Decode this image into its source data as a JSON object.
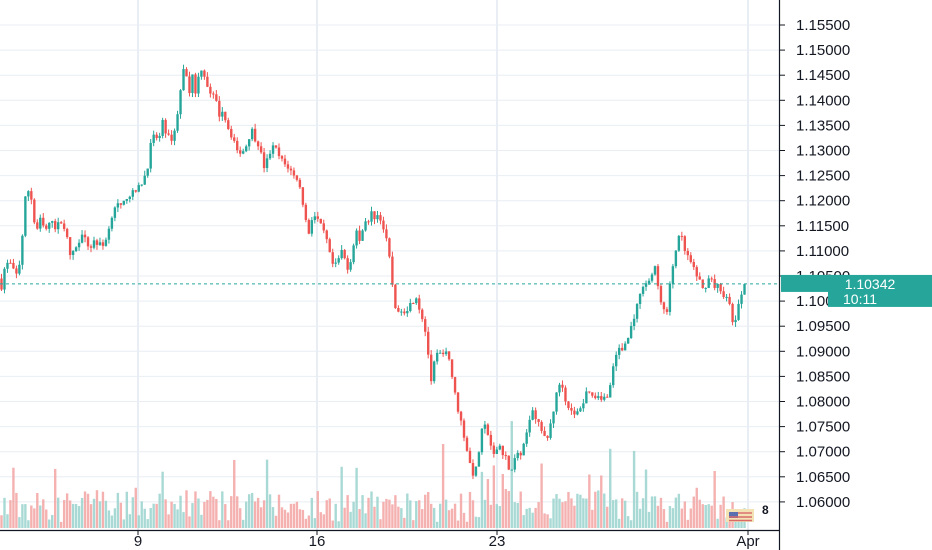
{
  "chart_data": {
    "type": "candlestick",
    "y_axis": {
      "ticks": [
        "1.15500",
        "1.15000",
        "1.14500",
        "1.14000",
        "1.13500",
        "1.13000",
        "1.12500",
        "1.12000",
        "1.11500",
        "1.11000",
        "1.10500",
        "1.10000",
        "1.09500",
        "1.09000",
        "1.08500",
        "1.08000",
        "1.07500",
        "1.07000",
        "1.06500",
        "1.06000"
      ],
      "ylim": [
        1.0555,
        1.159
      ],
      "position": "right"
    },
    "x_axis": {
      "ticks": [
        "9",
        "16",
        "23",
        "Apr"
      ]
    },
    "grid": true,
    "current_price": {
      "label": "1.10342",
      "value": 1.10342,
      "color": "#26a69a"
    },
    "countdown": {
      "label": "10:11"
    },
    "volume_badge": "8",
    "colors": {
      "up": "#26a69a",
      "down": "#ef5350",
      "grid": "#e8eef3",
      "axis": "#131722"
    },
    "path": [
      [
        0,
        1.1045
      ],
      [
        2,
        1.1025
      ],
      [
        4,
        1.109
      ],
      [
        5,
        1.107
      ],
      [
        7,
        1.1075
      ],
      [
        9,
        1.1045
      ],
      [
        12,
        1.1085
      ],
      [
        14,
        1.12
      ],
      [
        16,
        1.122
      ],
      [
        18,
        1.12
      ],
      [
        20,
        1.113
      ],
      [
        22,
        1.1165
      ],
      [
        25,
        1.114
      ],
      [
        27,
        1.115
      ],
      [
        29,
        1.1165
      ],
      [
        31,
        1.114
      ],
      [
        33,
        1.1165
      ],
      [
        35,
        1.115
      ],
      [
        37,
        1.112
      ],
      [
        39,
        1.108
      ],
      [
        41,
        1.111
      ],
      [
        43,
        1.111
      ],
      [
        45,
        1.114
      ],
      [
        47,
        1.1115
      ],
      [
        49,
        1.1105
      ],
      [
        51,
        1.112
      ],
      [
        53,
        1.1115
      ],
      [
        56,
        1.111
      ],
      [
        59,
        1.114
      ],
      [
        61,
        1.1175
      ],
      [
        63,
        1.1195
      ],
      [
        66,
        1.1185
      ],
      [
        69,
        1.121
      ],
      [
        72,
        1.1215
      ],
      [
        74,
        1.122
      ],
      [
        76,
        1.123
      ],
      [
        78,
        1.1245
      ],
      [
        80,
        1.127
      ],
      [
        82,
        1.132
      ],
      [
        84,
        1.133
      ],
      [
        86,
        1.132
      ],
      [
        88,
        1.1355
      ],
      [
        90,
        1.1335
      ],
      [
        92,
        1.132
      ],
      [
        94,
        1.133
      ],
      [
        96,
        1.1375
      ],
      [
        98,
        1.143
      ],
      [
        100,
        1.148
      ],
      [
        102,
        1.141
      ],
      [
        104,
        1.145
      ],
      [
        106,
        1.141
      ],
      [
        108,
        1.147
      ],
      [
        110,
        1.1455
      ],
      [
        112,
        1.143
      ],
      [
        114,
        1.1405
      ],
      [
        116,
        1.141
      ],
      [
        118,
        1.137
      ],
      [
        120,
        1.138
      ],
      [
        122,
        1.136
      ],
      [
        124,
        1.1335
      ],
      [
        126,
        1.1325
      ],
      [
        128,
        1.1295
      ],
      [
        130,
        1.13
      ],
      [
        132,
        1.13
      ],
      [
        134,
        1.1325
      ],
      [
        136,
        1.134
      ],
      [
        138,
        1.132
      ],
      [
        140,
        1.131
      ],
      [
        142,
        1.1265
      ],
      [
        144,
        1.128
      ],
      [
        146,
        1.13
      ],
      [
        148,
        1.131
      ],
      [
        150,
        1.129
      ],
      [
        152,
        1.128
      ],
      [
        154,
        1.127
      ],
      [
        156,
        1.1265
      ],
      [
        158,
        1.125
      ],
      [
        160,
        1.1245
      ],
      [
        162,
        1.122
      ],
      [
        164,
        1.118
      ],
      [
        166,
        1.113
      ],
      [
        168,
        1.1165
      ],
      [
        170,
        1.117
      ],
      [
        172,
        1.1155
      ],
      [
        174,
        1.114
      ],
      [
        176,
        1.112
      ],
      [
        178,
        1.1085
      ],
      [
        180,
        1.1065
      ],
      [
        182,
        1.108
      ],
      [
        184,
        1.11
      ],
      [
        186,
        1.108
      ],
      [
        188,
        1.106
      ],
      [
        190,
        1.111
      ],
      [
        192,
        1.114
      ],
      [
        194,
        1.111
      ],
      [
        196,
        1.117
      ],
      [
        198,
        1.115
      ],
      [
        200,
        1.1175
      ],
      [
        202,
        1.1165
      ],
      [
        204,
        1.1175
      ],
      [
        206,
        1.115
      ],
      [
        208,
        1.112
      ],
      [
        210,
        1.1075
      ],
      [
        212,
        1.1005
      ],
      [
        214,
        1.097
      ],
      [
        216,
        1.0985
      ],
      [
        218,
        1.098
      ],
      [
        220,
        1.099
      ],
      [
        222,
        1.1
      ],
      [
        224,
        1.101
      ],
      [
        226,
        1.098
      ],
      [
        228,
        1.096
      ],
      [
        230,
        1.091
      ],
      [
        232,
        1.0835
      ],
      [
        234,
        1.0885
      ],
      [
        236,
        1.09
      ],
      [
        238,
        1.0885
      ],
      [
        240,
        1.0905
      ],
      [
        242,
        1.088
      ],
      [
        244,
        1.083
      ],
      [
        246,
        1.079
      ],
      [
        248,
        1.076
      ],
      [
        250,
        1.0725
      ],
      [
        252,
        1.069
      ],
      [
        254,
        1.0655
      ],
      [
        256,
        1.0665
      ],
      [
        258,
        1.071
      ],
      [
        260,
        1.076
      ],
      [
        262,
        1.074
      ],
      [
        264,
        1.071
      ],
      [
        266,
        1.0685
      ],
      [
        268,
        1.072
      ],
      [
        270,
        1.07
      ],
      [
        272,
        1.069
      ],
      [
        274,
        1.0665
      ],
      [
        276,
        1.067
      ],
      [
        278,
        1.07
      ],
      [
        280,
        1.069
      ],
      [
        282,
        1.0715
      ],
      [
        284,
        1.0755
      ],
      [
        286,
        1.079
      ],
      [
        288,
        1.077
      ],
      [
        290,
        1.0755
      ],
      [
        292,
        1.073
      ],
      [
        294,
        1.072
      ],
      [
        296,
        1.0755
      ],
      [
        298,
        1.079
      ],
      [
        300,
        1.083
      ],
      [
        302,
        1.084
      ],
      [
        304,
        1.08
      ],
      [
        306,
        1.079
      ],
      [
        308,
        1.077
      ],
      [
        310,
        1.0775
      ],
      [
        312,
        1.079
      ],
      [
        314,
        1.08
      ],
      [
        316,
        1.083
      ],
      [
        318,
        1.081
      ],
      [
        320,
        1.081
      ],
      [
        322,
        1.0815
      ],
      [
        324,
        1.0805
      ],
      [
        326,
        1.081
      ],
      [
        328,
        1.083
      ],
      [
        330,
        1.088
      ],
      [
        332,
        1.0905
      ],
      [
        334,
        1.09
      ],
      [
        336,
        1.0915
      ],
      [
        338,
        1.093
      ],
      [
        340,
        1.096
      ],
      [
        342,
        1.0985
      ],
      [
        344,
        1.101
      ],
      [
        346,
        1.104
      ],
      [
        348,
        1.1035
      ],
      [
        350,
        1.105
      ],
      [
        352,
        1.1065
      ],
      [
        354,
        1.102
      ],
      [
        356,
        1.099
      ],
      [
        358,
        1.0965
      ],
      [
        360,
        1.103
      ],
      [
        362,
        1.108
      ],
      [
        364,
        1.112
      ],
      [
        366,
        1.113
      ],
      [
        368,
        1.11
      ],
      [
        370,
        1.1085
      ],
      [
        372,
        1.107
      ],
      [
        374,
        1.105
      ],
      [
        376,
        1.104
      ],
      [
        378,
        1.102
      ],
      [
        380,
        1.104
      ],
      [
        382,
        1.105
      ],
      [
        384,
        1.103
      ],
      [
        386,
        1.103
      ],
      [
        388,
        1.1015
      ],
      [
        390,
        1.101
      ],
      [
        392,
        1.099
      ],
      [
        394,
        1.095
      ],
      [
        396,
        1.0975
      ],
      [
        398,
        1.101
      ],
      [
        400,
        1.1034
      ]
    ]
  }
}
